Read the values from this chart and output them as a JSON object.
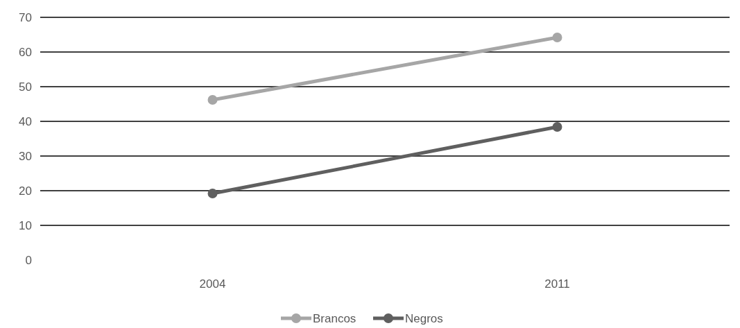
{
  "chart_data": {
    "type": "line",
    "categories": [
      "2004",
      "2011"
    ],
    "series": [
      {
        "name": "Brancos",
        "color": "#a6a6a6",
        "values": [
          46.2,
          64.2
        ]
      },
      {
        "name": "Negros",
        "color": "#5f5f5f",
        "values": [
          19.2,
          38.4
        ]
      }
    ],
    "ylim": [
      0,
      70
    ],
    "yticks": [
      0,
      10,
      20,
      30,
      40,
      50,
      60,
      70
    ],
    "grid": "y",
    "legend": "bottom",
    "marker": "circle",
    "line_style": "solid"
  }
}
